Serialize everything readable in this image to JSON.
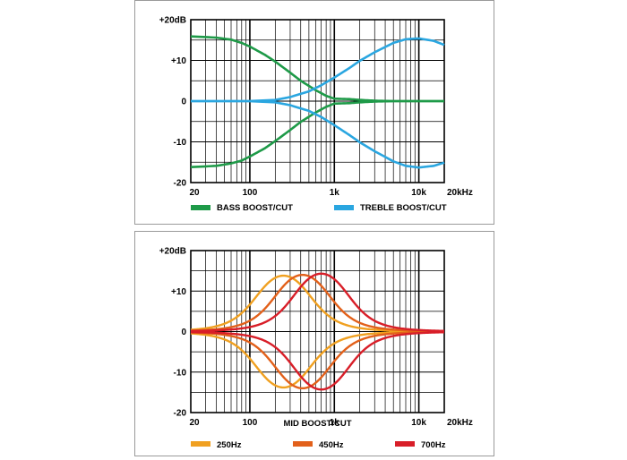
{
  "chart_data": [
    {
      "type": "line",
      "title": "",
      "x_scale": "log",
      "xlim": [
        20,
        20000
      ],
      "ylim": [
        -20,
        20
      ],
      "x_tick_labels": [
        "20",
        "100",
        "1k",
        "10k",
        "20kHz"
      ],
      "y_tick_labels": [
        "+20dB",
        "+10",
        "0",
        "-10",
        "-20"
      ],
      "grid": true,
      "legend_position": "bottom",
      "legend": [
        {
          "label": "BASS BOOST/CUT",
          "color": "#1e9a48"
        },
        {
          "label": "TREBLE BOOST/CUT",
          "color": "#2aa6e0"
        }
      ],
      "series": [
        {
          "name": "BASS BOOST/CUT",
          "color": "#1e9a48",
          "x": [
            20,
            40,
            60,
            80,
            100,
            150,
            200,
            300,
            400,
            600,
            800,
            1000,
            1500,
            2000,
            3000,
            5000,
            10000,
            20000
          ],
          "y": [
            15.9,
            15.6,
            15.1,
            14.3,
            13.4,
            11.4,
            9.7,
            7.0,
            5.0,
            2.7,
            1.3,
            0.6,
            0.5,
            0.3,
            0.1,
            0,
            0,
            0
          ]
        },
        {
          "name": "BASS BOOST/CUT",
          "color": "#1e9a48",
          "x": [
            20,
            40,
            60,
            80,
            100,
            150,
            200,
            300,
            400,
            600,
            800,
            1000,
            1500,
            2000,
            3000,
            5000,
            10000,
            20000
          ],
          "y": [
            -16.2,
            -15.9,
            -15.3,
            -14.6,
            -13.6,
            -11.6,
            -9.8,
            -7.1,
            -5.1,
            -2.8,
            -1.4,
            -0.6,
            -0.5,
            -0.3,
            -0.1,
            0,
            0,
            0
          ]
        },
        {
          "name": "TREBLE BOOST/CUT",
          "color": "#2aa6e0",
          "x": [
            20,
            100,
            200,
            300,
            500,
            700,
            1000,
            1500,
            2000,
            3000,
            5000,
            7000,
            10000,
            15000,
            20000
          ],
          "y": [
            0,
            0,
            0.3,
            1.0,
            2.4,
            3.9,
            5.8,
            8.1,
            9.9,
            12.0,
            14.3,
            15.2,
            15.4,
            14.8,
            13.8
          ]
        },
        {
          "name": "TREBLE BOOST/CUT",
          "color": "#2aa6e0",
          "x": [
            20,
            100,
            200,
            300,
            500,
            700,
            1000,
            1500,
            2000,
            3000,
            5000,
            7000,
            10000,
            15000,
            20000
          ],
          "y": [
            0,
            0,
            -0.3,
            -1.0,
            -2.4,
            -3.9,
            -5.9,
            -8.3,
            -10.1,
            -12.3,
            -14.8,
            -15.9,
            -16.3,
            -15.9,
            -15.1
          ]
        }
      ]
    },
    {
      "type": "line",
      "title": "",
      "xlabel": "MID BOOST/CUT",
      "x_scale": "log",
      "xlim": [
        20,
        20000
      ],
      "ylim": [
        -20,
        20
      ],
      "x_tick_labels": [
        "20",
        "100",
        "1k",
        "10k",
        "20kHz"
      ],
      "y_tick_labels": [
        "+20dB",
        "+10",
        "0",
        "-10",
        "-20"
      ],
      "grid": true,
      "legend_position": "bottom",
      "legend": [
        {
          "label": "250Hz",
          "color": "#f0a020"
        },
        {
          "label": "450Hz",
          "color": "#e2601a"
        },
        {
          "label": "700Hz",
          "color": "#d81e28"
        }
      ],
      "peaks": [
        {
          "name": "250Hz",
          "color": "#f0a020",
          "center_hz": 250,
          "gain_db": 13.8
        },
        {
          "name": "450Hz",
          "color": "#e2601a",
          "center_hz": 420,
          "gain_db": 14.0
        },
        {
          "name": "700Hz",
          "color": "#d81e28",
          "center_hz": 700,
          "gain_db": 14.3
        }
      ]
    }
  ]
}
